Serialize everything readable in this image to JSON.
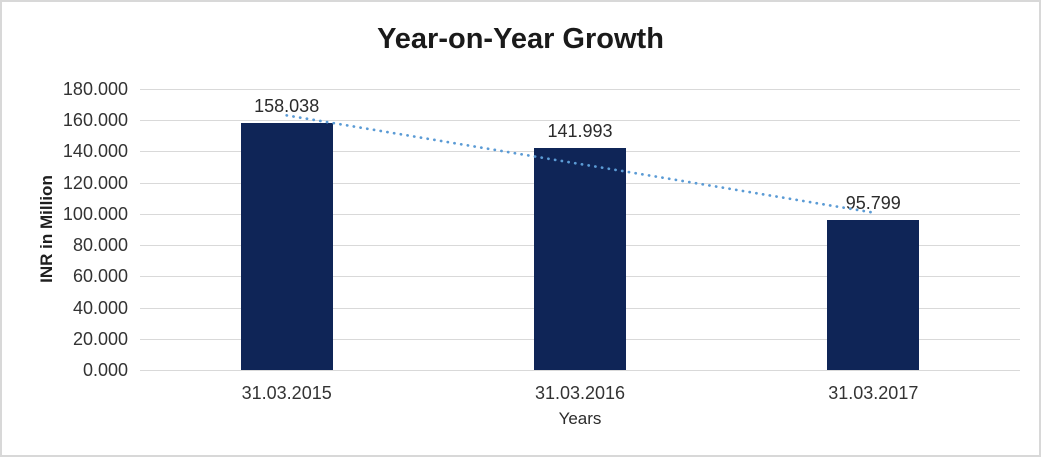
{
  "chart_data": {
    "type": "bar",
    "title": "Year-on-Year Growth",
    "xlabel": "Years",
    "ylabel": "INR in Million",
    "categories": [
      "31.03.2015",
      "31.03.2016",
      "31.03.2017"
    ],
    "values": [
      158.038,
      141.993,
      95.799
    ],
    "value_labels": [
      "158.038",
      "141.993",
      "95.799"
    ],
    "ylim": [
      0,
      180
    ],
    "ytick_step": 20,
    "ytick_labels": [
      "0.000",
      "20.000",
      "40.000",
      "60.000",
      "80.000",
      "100.000",
      "120.000",
      "140.000",
      "160.000",
      "180.000"
    ],
    "grid": true,
    "legend": "none",
    "colors": {
      "bar": "#0F2557",
      "gridline": "#D9D9D9",
      "trendline": "#5B9BD5"
    },
    "trendline": {
      "style": "dotted",
      "color": "#5B9BD5",
      "start_value": 163.06,
      "end_value": 100.82
    }
  }
}
